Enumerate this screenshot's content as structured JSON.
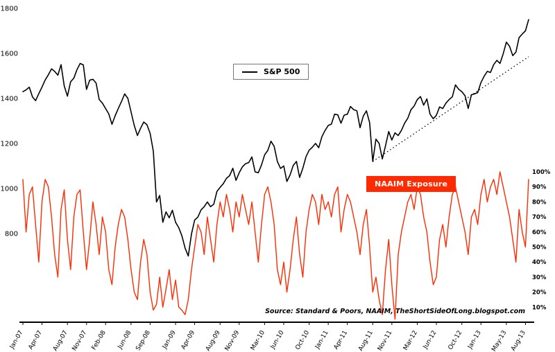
{
  "page": {
    "background": "#ffffff"
  },
  "chart_data": {
    "type": "line",
    "title": "",
    "legend": {
      "sp500_label": "S&P 500",
      "naaim_label": "NAAIM Exposure"
    },
    "source_note": "Source: Standard & Poors, NAAIM, TheShortSideOfLong.blogspot.com",
    "colors": {
      "sp500": "#000000",
      "naaim": "#ff2a00",
      "trendline": "#000000",
      "axis": "#000000"
    },
    "left_axis": {
      "ticks": [
        1800,
        1600,
        1400,
        1200,
        1000,
        800
      ],
      "min": 700,
      "max": 1800,
      "side": "left"
    },
    "right_axis": {
      "ticks": [
        100,
        90,
        80,
        70,
        60,
        50,
        40,
        30,
        20,
        10
      ],
      "suffix": "%",
      "min": 0,
      "max": 100,
      "side": "right"
    },
    "x_tick_labels": [
      "Jan-07",
      "Apr-07",
      "Aug-07",
      "Nov-07",
      "Feb-08",
      "Jun-08",
      "Sep-08",
      "Jan-09",
      "Apr-09",
      "Aug-09",
      "Nov-09",
      "Mar-10",
      "Jun-10",
      "Oct-10",
      "Jan-11",
      "Apr-11",
      "Aug-11",
      "Nov-11",
      "Mar-12",
      "Jun-12",
      "Oct-12",
      "Jan-13",
      "May-13",
      "Aug-13"
    ],
    "x_tick_months": [
      0,
      3,
      7,
      10,
      13,
      17,
      20,
      24,
      27,
      31,
      34,
      38,
      41,
      45,
      48,
      51,
      55,
      58,
      62,
      65,
      69,
      72,
      76,
      79
    ],
    "months_total": 80,
    "points_per_month": 2,
    "series": [
      {
        "name": "S&P 500",
        "axis": "left",
        "color": "#000000",
        "values": [
          1430,
          1438,
          1450,
          1407,
          1390,
          1421,
          1450,
          1482,
          1505,
          1531,
          1520,
          1503,
          1550,
          1455,
          1410,
          1474,
          1490,
          1527,
          1555,
          1549,
          1440,
          1481,
          1485,
          1468,
          1395,
          1379,
          1355,
          1331,
          1285,
          1323,
          1355,
          1386,
          1420,
          1400,
          1340,
          1280,
          1235,
          1267,
          1295,
          1283,
          1245,
          1166,
          940,
          969,
          850,
          896,
          870,
          903,
          850,
          826,
          790,
          735,
          700,
          798,
          860,
          873,
          905,
          919,
          940,
          919,
          930,
          987,
          1005,
          1021,
          1045,
          1057,
          1090,
          1036,
          1070,
          1096,
          1110,
          1115,
          1140,
          1074,
          1070,
          1104,
          1150,
          1169,
          1210,
          1187,
          1120,
          1089,
          1100,
          1031,
          1060,
          1102,
          1120,
          1049,
          1090,
          1141,
          1170,
          1183,
          1200,
          1181,
          1230,
          1258,
          1280,
          1286,
          1330,
          1327,
          1290,
          1326,
          1330,
          1364,
          1350,
          1345,
          1270,
          1321,
          1345,
          1292,
          1120,
          1219,
          1200,
          1131,
          1190,
          1253,
          1215,
          1247,
          1235,
          1258,
          1290,
          1312,
          1350,
          1366,
          1395,
          1408,
          1370,
          1398,
          1330,
          1310,
          1325,
          1362,
          1355,
          1379,
          1395,
          1407,
          1460,
          1441,
          1430,
          1412,
          1355,
          1416,
          1420,
          1426,
          1470,
          1498,
          1520,
          1515,
          1550,
          1569,
          1555,
          1598,
          1650,
          1631,
          1590,
          1606,
          1670,
          1686,
          1700,
          1750
        ]
      },
      {
        "name": "NAAIM Exposure",
        "axis": "right",
        "color": "#ff2a00",
        "values": [
          95,
          60,
          85,
          90,
          65,
          40,
          80,
          95,
          90,
          70,
          45,
          30,
          75,
          88,
          55,
          35,
          70,
          85,
          88,
          60,
          35,
          55,
          80,
          65,
          45,
          70,
          60,
          35,
          25,
          50,
          65,
          75,
          70,
          55,
          35,
          20,
          15,
          40,
          55,
          45,
          20,
          8,
          12,
          30,
          10,
          22,
          35,
          15,
          28,
          10,
          8,
          5,
          15,
          35,
          50,
          65,
          60,
          45,
          70,
          55,
          40,
          65,
          80,
          70,
          85,
          75,
          60,
          80,
          70,
          85,
          75,
          65,
          80,
          60,
          40,
          65,
          85,
          90,
          80,
          65,
          35,
          25,
          40,
          20,
          35,
          55,
          70,
          45,
          30,
          60,
          75,
          85,
          80,
          65,
          85,
          75,
          80,
          70,
          85,
          90,
          60,
          75,
          85,
          80,
          70,
          60,
          45,
          65,
          75,
          50,
          20,
          30,
          15,
          5,
          35,
          55,
          25,
          2,
          45,
          60,
          70,
          80,
          85,
          75,
          90,
          85,
          70,
          60,
          40,
          25,
          30,
          55,
          65,
          50,
          70,
          85,
          90,
          80,
          70,
          60,
          45,
          70,
          75,
          65,
          85,
          95,
          80,
          90,
          95,
          85,
          100,
          90,
          80,
          70,
          55,
          40,
          75,
          60,
          50,
          95
        ]
      }
    ],
    "trendline": {
      "style": "dotted",
      "start": {
        "month": 55,
        "value": 1120
      },
      "end": {
        "month": 79.5,
        "value": 1585
      }
    }
  }
}
